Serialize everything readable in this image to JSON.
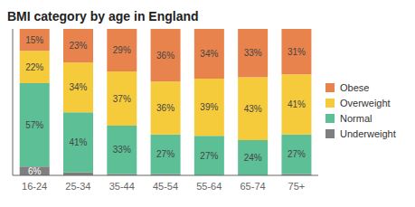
{
  "chart_data": {
    "type": "bar",
    "title": "BMI category by age in England",
    "categories": [
      "16-24",
      "25-34",
      "35-44",
      "45-54",
      "55-64",
      "65-74",
      "75+"
    ],
    "stacked": true,
    "ylim": [
      0,
      100
    ],
    "tick_labels": "x",
    "grid": false,
    "legend": "right",
    "data_labels": true,
    "series": [
      {
        "name": "Underweight",
        "color": "#7f7f7f",
        "values": [
          6,
          2,
          1,
          1,
          0,
          0,
          1
        ],
        "value_labels": [
          "6%",
          null,
          null,
          null,
          null,
          null,
          null
        ]
      },
      {
        "name": "Normal",
        "color": "#5cbf96",
        "values": [
          57,
          41,
          33,
          27,
          27,
          24,
          27
        ],
        "value_labels": [
          "57%",
          "41%",
          "33%",
          "27%",
          "27%",
          "24%",
          "27%"
        ]
      },
      {
        "name": "Overweight",
        "color": "#f5cb3c",
        "values": [
          22,
          34,
          37,
          36,
          39,
          43,
          41
        ],
        "value_labels": [
          "22%",
          "34%",
          "37%",
          "36%",
          "39%",
          "43%",
          "41%"
        ]
      },
      {
        "name": "Obese",
        "color": "#e8834d",
        "values": [
          15,
          23,
          29,
          36,
          34,
          33,
          31
        ],
        "value_labels": [
          "15%",
          "23%",
          "29%",
          "36%",
          "34%",
          "33%",
          "31%"
        ]
      }
    ]
  }
}
